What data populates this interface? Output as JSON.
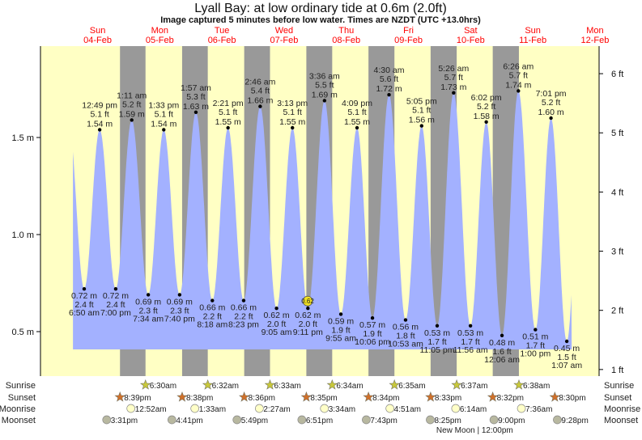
{
  "chart_data": {
    "type": "area",
    "title": "Lyall Bay: at low  ordinary tide at 0.6m (2.0ft)",
    "subtitle": "Image captured 5 minutes before low water. Times are NZDT (UTC +13.0hrs)",
    "days": [
      {
        "dow": "Sun",
        "date": "04-Feb"
      },
      {
        "dow": "Mon",
        "date": "05-Feb"
      },
      {
        "dow": "Tue",
        "date": "06-Feb"
      },
      {
        "dow": "Wed",
        "date": "07-Feb"
      },
      {
        "dow": "Thu",
        "date": "08-Feb"
      },
      {
        "dow": "Fri",
        "date": "09-Feb"
      },
      {
        "dow": "Sat",
        "date": "10-Feb"
      },
      {
        "dow": "Sun",
        "date": "11-Feb"
      },
      {
        "dow": "Mon",
        "date": "12-Feb"
      }
    ],
    "left_axis": {
      "unit": "m",
      "ticks": [
        "0.5 m",
        "1.0 m",
        "1.5 m"
      ],
      "values": [
        0.5,
        1.0,
        1.5
      ]
    },
    "right_axis": {
      "unit": "ft",
      "ticks": [
        "1 ft",
        "2 ft",
        "3 ft",
        "4 ft",
        "5 ft",
        "6 ft"
      ],
      "values": [
        1,
        2,
        3,
        4,
        5,
        6
      ]
    },
    "ylim_m": [
      0.29,
      1.99
    ],
    "tides": [
      {
        "day": 0,
        "type": "low",
        "time": "6:50 am",
        "m": "0.72 m",
        "ft": "2.4 ft",
        "value": 0.72
      },
      {
        "day": 0,
        "type": "high",
        "time": "12:49 pm",
        "m": "1.54 m",
        "ft": "5.1 ft",
        "value": 1.54
      },
      {
        "day": 0,
        "type": "low",
        "time": "7:00 pm",
        "m": "0.72 m",
        "ft": "2.4 ft",
        "value": 0.72
      },
      {
        "day": 1,
        "type": "high",
        "time": "1:11 am",
        "m": "1.59 m",
        "ft": "5.2 ft",
        "value": 1.59
      },
      {
        "day": 1,
        "type": "low",
        "time": "7:34 am",
        "m": "0.69 m",
        "ft": "2.3 ft",
        "value": 0.69
      },
      {
        "day": 1,
        "type": "high",
        "time": "1:33 pm",
        "m": "1.54 m",
        "ft": "5.1 ft",
        "value": 1.54
      },
      {
        "day": 1,
        "type": "low",
        "time": "7:40 pm",
        "m": "0.69 m",
        "ft": "2.3 ft",
        "value": 0.69
      },
      {
        "day": 2,
        "type": "high",
        "time": "1:57 am",
        "m": "1.63 m",
        "ft": "5.3 ft",
        "value": 1.63
      },
      {
        "day": 2,
        "type": "low",
        "time": "8:18 am",
        "m": "0.66 m",
        "ft": "2.2 ft",
        "value": 0.66
      },
      {
        "day": 2,
        "type": "high",
        "time": "2:21 pm",
        "m": "1.55 m",
        "ft": "5.1 ft",
        "value": 1.55
      },
      {
        "day": 2,
        "type": "low",
        "time": "8:23 pm",
        "m": "0.66 m",
        "ft": "2.2 ft",
        "value": 0.66
      },
      {
        "day": 3,
        "type": "high",
        "time": "2:46 am",
        "m": "1.66 m",
        "ft": "5.4 ft",
        "value": 1.66
      },
      {
        "day": 3,
        "type": "low",
        "time": "9:05 am",
        "m": "0.62 m",
        "ft": "2.0 ft",
        "value": 0.62
      },
      {
        "day": 3,
        "type": "high",
        "time": "3:13 pm",
        "m": "1.55 m",
        "ft": "5.1 ft",
        "value": 1.55
      },
      {
        "day": 3,
        "type": "low",
        "time": "9:11 pm",
        "m": "0.62 m",
        "ft": "2.0 ft",
        "value": 0.62
      },
      {
        "day": 4,
        "type": "high",
        "time": "3:36 am",
        "m": "1.69 m",
        "ft": "5.5 ft",
        "value": 1.69
      },
      {
        "day": 4,
        "type": "low",
        "time": "9:55 am",
        "m": "0.59 m",
        "ft": "1.9 ft",
        "value": 0.59
      },
      {
        "day": 4,
        "type": "high",
        "time": "4:09 pm",
        "m": "1.55 m",
        "ft": "5.1 ft",
        "value": 1.55
      },
      {
        "day": 4,
        "type": "low",
        "time": "10:06 pm",
        "m": "0.57 m",
        "ft": "1.9 ft",
        "value": 0.57
      },
      {
        "day": 5,
        "type": "high",
        "time": "4:30 am",
        "m": "1.72 m",
        "ft": "5.6 ft",
        "value": 1.72
      },
      {
        "day": 5,
        "type": "low",
        "time": "10:53 am",
        "m": "0.56 m",
        "ft": "1.8 ft",
        "value": 0.56
      },
      {
        "day": 5,
        "type": "high",
        "time": "5:05 pm",
        "m": "1.56 m",
        "ft": "5.1 ft",
        "value": 1.56
      },
      {
        "day": 5,
        "type": "low",
        "time": "11:05 pm",
        "m": "0.53 m",
        "ft": "1.7 ft",
        "value": 0.53
      },
      {
        "day": 6,
        "type": "high",
        "time": "5:26 am",
        "m": "1.73 m",
        "ft": "5.7 ft",
        "value": 1.73
      },
      {
        "day": 6,
        "type": "low",
        "time": "11:56 am",
        "m": "0.53 m",
        "ft": "1.7 ft",
        "value": 0.53
      },
      {
        "day": 6,
        "type": "high",
        "time": "6:02 pm",
        "m": "1.58 m",
        "ft": "5.2 ft",
        "value": 1.58
      },
      {
        "day": 7,
        "type": "low",
        "time": "12:06 am",
        "m": "0.48 m",
        "ft": "1.6 ft",
        "value": 0.48
      },
      {
        "day": 7,
        "type": "high",
        "time": "6:26 am",
        "m": "1.74 m",
        "ft": "5.7 ft",
        "value": 1.74
      },
      {
        "day": 7,
        "type": "low",
        "time": "1:00 pm",
        "m": "0.51 m",
        "ft": "1.7 ft",
        "value": 0.51
      },
      {
        "day": 7,
        "type": "high",
        "time": "7:01 pm",
        "m": "1.60 m",
        "ft": "5.2 ft",
        "value": 1.6
      },
      {
        "day": 8,
        "type": "low",
        "time": "1:07 am",
        "m": "0.45 m",
        "ft": "1.5 ft",
        "value": 0.45
      }
    ],
    "current_marker": {
      "label": "0.62",
      "day": 3,
      "time": "9:06 pm",
      "value": 0.62
    },
    "astro": {
      "sunrise": {
        "label": "Sunrise",
        "items": [
          {
            "day": 1,
            "time": "6:30am"
          },
          {
            "day": 2,
            "time": "6:32am"
          },
          {
            "day": 3,
            "time": "6:33am"
          },
          {
            "day": 4,
            "time": "6:34am"
          },
          {
            "day": 5,
            "time": "6:35am"
          },
          {
            "day": 6,
            "time": "6:37am"
          },
          {
            "day": 7,
            "time": "6:38am"
          }
        ]
      },
      "sunset": {
        "label": "Sunset",
        "items": [
          {
            "day": 0,
            "time": "8:39pm"
          },
          {
            "day": 1,
            "time": "8:38pm"
          },
          {
            "day": 2,
            "time": "8:36pm"
          },
          {
            "day": 3,
            "time": "8:35pm"
          },
          {
            "day": 4,
            "time": "8:34pm"
          },
          {
            "day": 5,
            "time": "8:33pm"
          },
          {
            "day": 6,
            "time": "8:32pm"
          },
          {
            "day": 7,
            "time": "8:30pm"
          }
        ]
      },
      "moonrise": {
        "label": "Moonrise",
        "items": [
          {
            "day": 1,
            "time": "12:52am"
          },
          {
            "day": 2,
            "time": "1:33am"
          },
          {
            "day": 3,
            "time": "2:27am"
          },
          {
            "day": 4,
            "time": "3:34am"
          },
          {
            "day": 5,
            "time": "4:51am"
          },
          {
            "day": 6,
            "time": "6:14am"
          },
          {
            "day": 7,
            "time": "7:36am"
          }
        ]
      },
      "moonset": {
        "label": "Moonset",
        "items": [
          {
            "day": 0,
            "time": "3:31pm"
          },
          {
            "day": 1,
            "time": "4:41pm"
          },
          {
            "day": 2,
            "time": "5:49pm"
          },
          {
            "day": 3,
            "time": "6:51pm"
          },
          {
            "day": 4,
            "time": "7:43pm"
          },
          {
            "day": 5,
            "time": "8:25pm"
          },
          {
            "day": 6,
            "time": "9:00pm"
          },
          {
            "day": 7,
            "time": "9:28pm"
          }
        ]
      },
      "moon_phase": {
        "label": "New Moon | 12:00pm",
        "day": 6,
        "time": "12:00pm"
      }
    },
    "colors": {
      "day": "#ffffc4",
      "night": "#999999",
      "water": "#a3b1ff",
      "date": "#ff0000",
      "sunrise": "#c8c83a",
      "sunset": "#d0702a",
      "moonrise": "#ffffc8",
      "moonset": "#b8b8a0"
    }
  }
}
